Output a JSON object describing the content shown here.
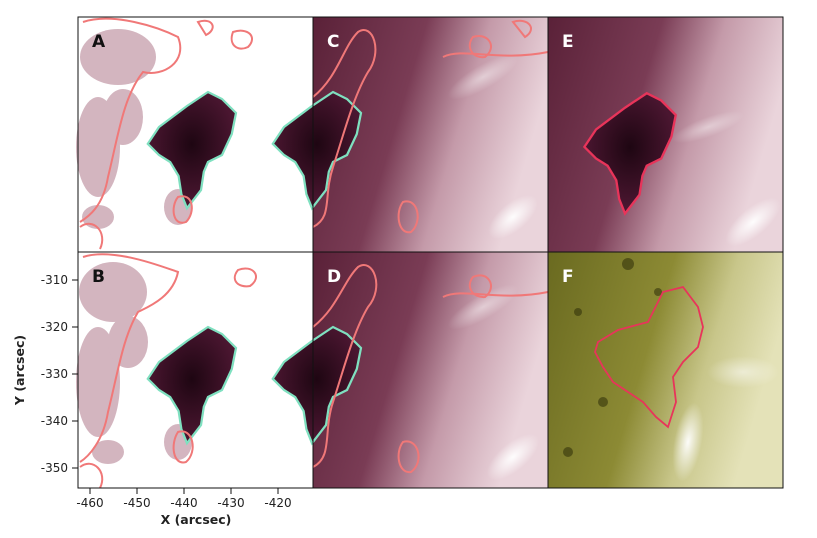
{
  "panels": [
    {
      "id": "A",
      "label": "A",
      "fill": "white-bg"
    },
    {
      "id": "C",
      "label": "C",
      "fill": "maroon"
    },
    {
      "id": "E",
      "label": "E",
      "fill": "maroon"
    },
    {
      "id": "B",
      "label": "B",
      "fill": "white-bg"
    },
    {
      "id": "D",
      "label": "D",
      "fill": "maroon"
    },
    {
      "id": "F",
      "label": "F",
      "fill": "olive"
    }
  ],
  "axes": {
    "xlabel": "X (arcsec)",
    "ylabel": "Y (arcsec)",
    "xticks": [
      "-460",
      "-450",
      "-440",
      "-430",
      "-420"
    ],
    "yticks": [
      "-310",
      "-320",
      "-330",
      "-340",
      "-350"
    ]
  },
  "colors": {
    "contour_salmon": "#f07878",
    "contour_teal": "#7fe0c0",
    "contour_pink": "#e8345a",
    "maroon_dark": "#3a0f24",
    "maroon_light": "#f4e6ea",
    "olive_dark": "#3c3c0a",
    "olive_light": "#f6f2d8"
  }
}
